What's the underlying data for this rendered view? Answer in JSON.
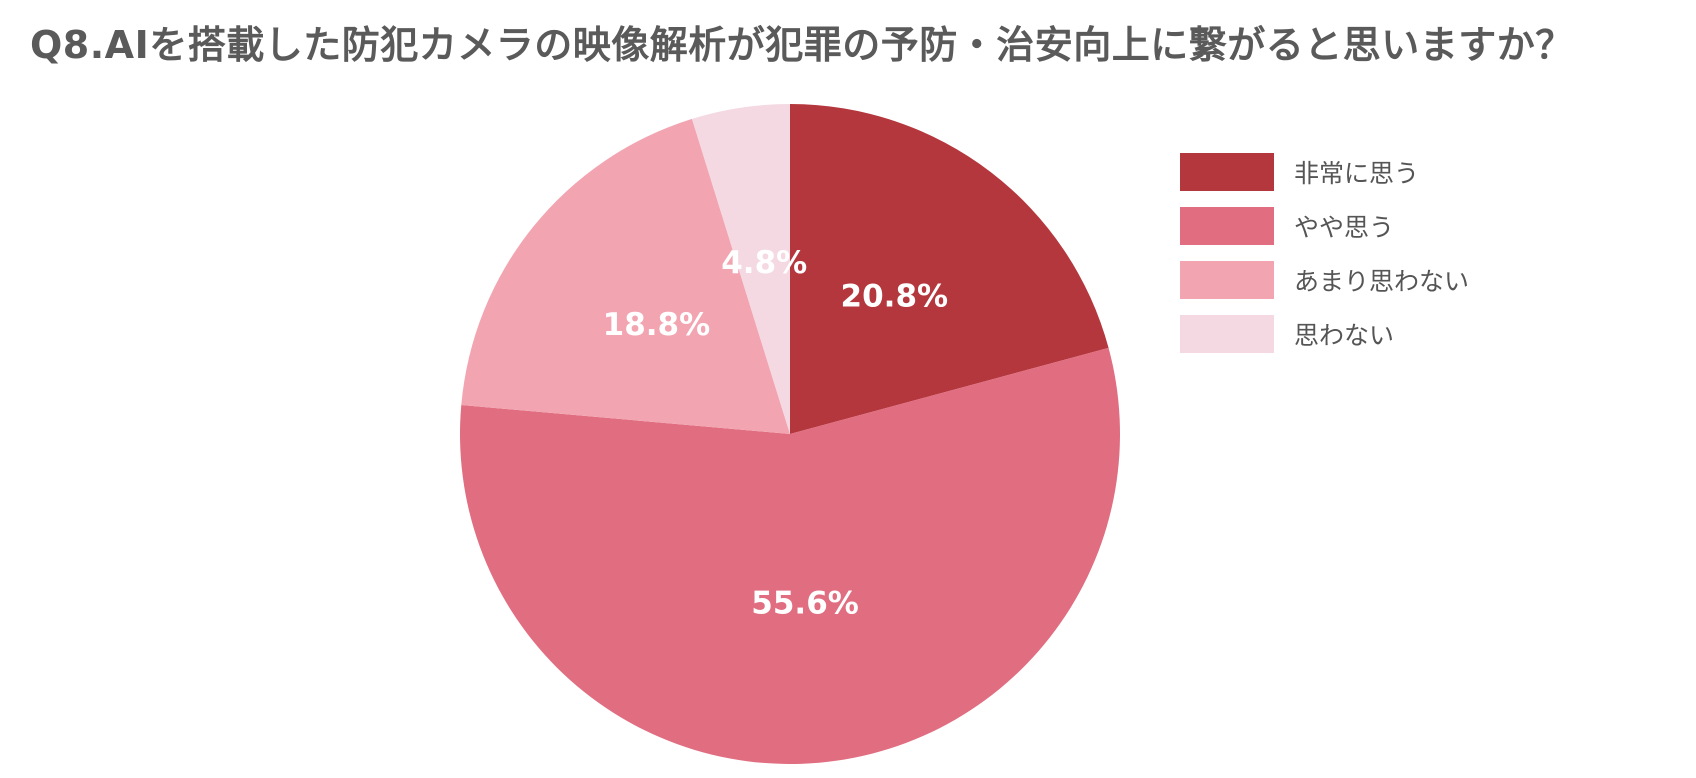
{
  "chart_data": {
    "type": "pie",
    "title": "Q8.AIを搭載した防犯カメラの映像解析が犯罪の予防・治安向上に繋がると思いますか？",
    "categories": [
      "非常に思う",
      "やや思う",
      "あまり思わない",
      "思わない"
    ],
    "values": [
      20.8,
      55.6,
      18.8,
      4.8
    ],
    "value_labels": [
      "20.8%",
      "55.6%",
      "18.8%",
      "4.8%"
    ],
    "colors": [
      "#B5373E",
      "#E16D80",
      "#F2A5B1",
      "#F4D9E2"
    ],
    "start_angle": "12 o'clock",
    "direction": "clockwise",
    "legend_position": "right"
  }
}
